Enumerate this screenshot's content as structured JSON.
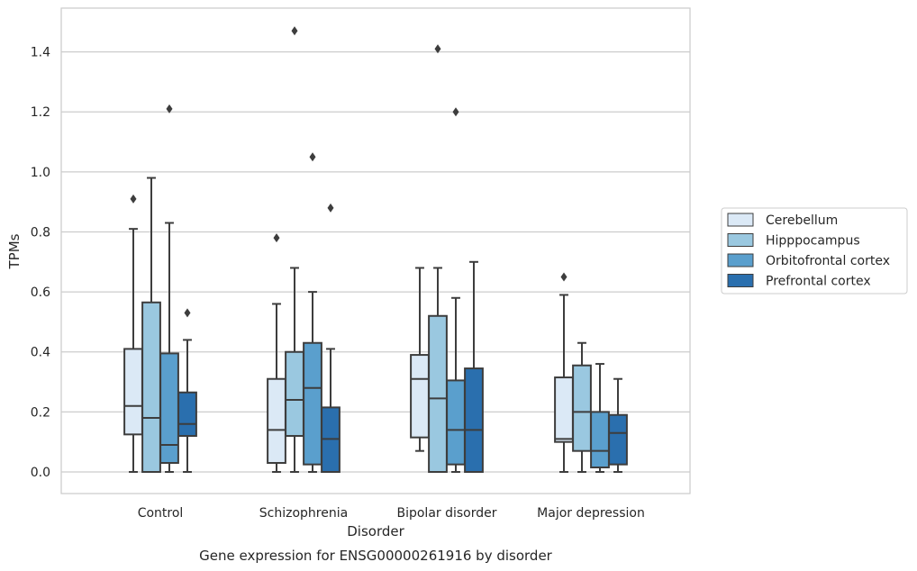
{
  "chart_data": {
    "type": "box",
    "xlabel": "Disorder",
    "ylabel": "TPMs",
    "caption": "Gene expression for ENSG00000261916 by disorder",
    "ylim": [
      -0.07,
      1.55
    ],
    "yticks": [
      0.0,
      0.2,
      0.4,
      0.6,
      0.8,
      1.0,
      1.2,
      1.4
    ],
    "ytick_labels": [
      "0.0",
      "0.2",
      "0.4",
      "0.6",
      "0.8",
      "1.0",
      "1.2",
      "1.4"
    ],
    "categories": [
      "Control",
      "Schizophrenia",
      "Bipolar disorder",
      "Major depression"
    ],
    "grid": "horizontal",
    "legend_position": "right",
    "series": [
      {
        "name": "Cerebellum",
        "color": "#dbe9f6",
        "boxes": [
          {
            "whislo": 0.0,
            "q1": 0.125,
            "med": 0.22,
            "q3": 0.41,
            "whishi": 0.81,
            "fliers": [
              0.91
            ]
          },
          {
            "whislo": 0.0,
            "q1": 0.03,
            "med": 0.14,
            "q3": 0.31,
            "whishi": 0.56,
            "fliers": [
              0.78
            ]
          },
          {
            "whislo": 0.07,
            "q1": 0.115,
            "med": 0.31,
            "q3": 0.39,
            "whishi": 0.68,
            "fliers": []
          },
          {
            "whislo": 0.0,
            "q1": 0.1,
            "med": 0.11,
            "q3": 0.315,
            "whishi": 0.59,
            "fliers": [
              0.65
            ]
          }
        ]
      },
      {
        "name": "Hipppocampus",
        "color": "#9ac8e0",
        "boxes": [
          {
            "whislo": 0.0,
            "q1": 0.0,
            "med": 0.18,
            "q3": 0.565,
            "whishi": 0.98,
            "fliers": []
          },
          {
            "whislo": 0.0,
            "q1": 0.12,
            "med": 0.24,
            "q3": 0.4,
            "whishi": 0.68,
            "fliers": [
              1.47
            ]
          },
          {
            "whislo": 0.0,
            "q1": 0.0,
            "med": 0.245,
            "q3": 0.52,
            "whishi": 0.68,
            "fliers": [
              1.41
            ]
          },
          {
            "whislo": 0.0,
            "q1": 0.07,
            "med": 0.2,
            "q3": 0.355,
            "whishi": 0.43,
            "fliers": []
          }
        ]
      },
      {
        "name": "Orbitofrontal cortex",
        "color": "#5a9fcd",
        "boxes": [
          {
            "whislo": 0.0,
            "q1": 0.03,
            "med": 0.09,
            "q3": 0.395,
            "whishi": 0.83,
            "fliers": [
              1.21
            ]
          },
          {
            "whislo": 0.0,
            "q1": 0.025,
            "med": 0.28,
            "q3": 0.43,
            "whishi": 0.6,
            "fliers": [
              1.05
            ]
          },
          {
            "whislo": 0.0,
            "q1": 0.025,
            "med": 0.14,
            "q3": 0.305,
            "whishi": 0.58,
            "fliers": [
              1.2
            ]
          },
          {
            "whislo": 0.0,
            "q1": 0.015,
            "med": 0.07,
            "q3": 0.2,
            "whishi": 0.36,
            "fliers": []
          }
        ]
      },
      {
        "name": "Prefrontal cortex",
        "color": "#2a6fae",
        "boxes": [
          {
            "whislo": 0.0,
            "q1": 0.12,
            "med": 0.16,
            "q3": 0.265,
            "whishi": 0.44,
            "fliers": [
              0.53
            ]
          },
          {
            "whislo": 0.0,
            "q1": 0.0,
            "med": 0.11,
            "q3": 0.215,
            "whishi": 0.41,
            "fliers": [
              0.88
            ]
          },
          {
            "whislo": 0.0,
            "q1": 0.0,
            "med": 0.14,
            "q3": 0.345,
            "whishi": 0.7,
            "fliers": []
          },
          {
            "whislo": 0.0,
            "q1": 0.025,
            "med": 0.13,
            "q3": 0.19,
            "whishi": 0.31,
            "fliers": []
          }
        ]
      }
    ]
  }
}
